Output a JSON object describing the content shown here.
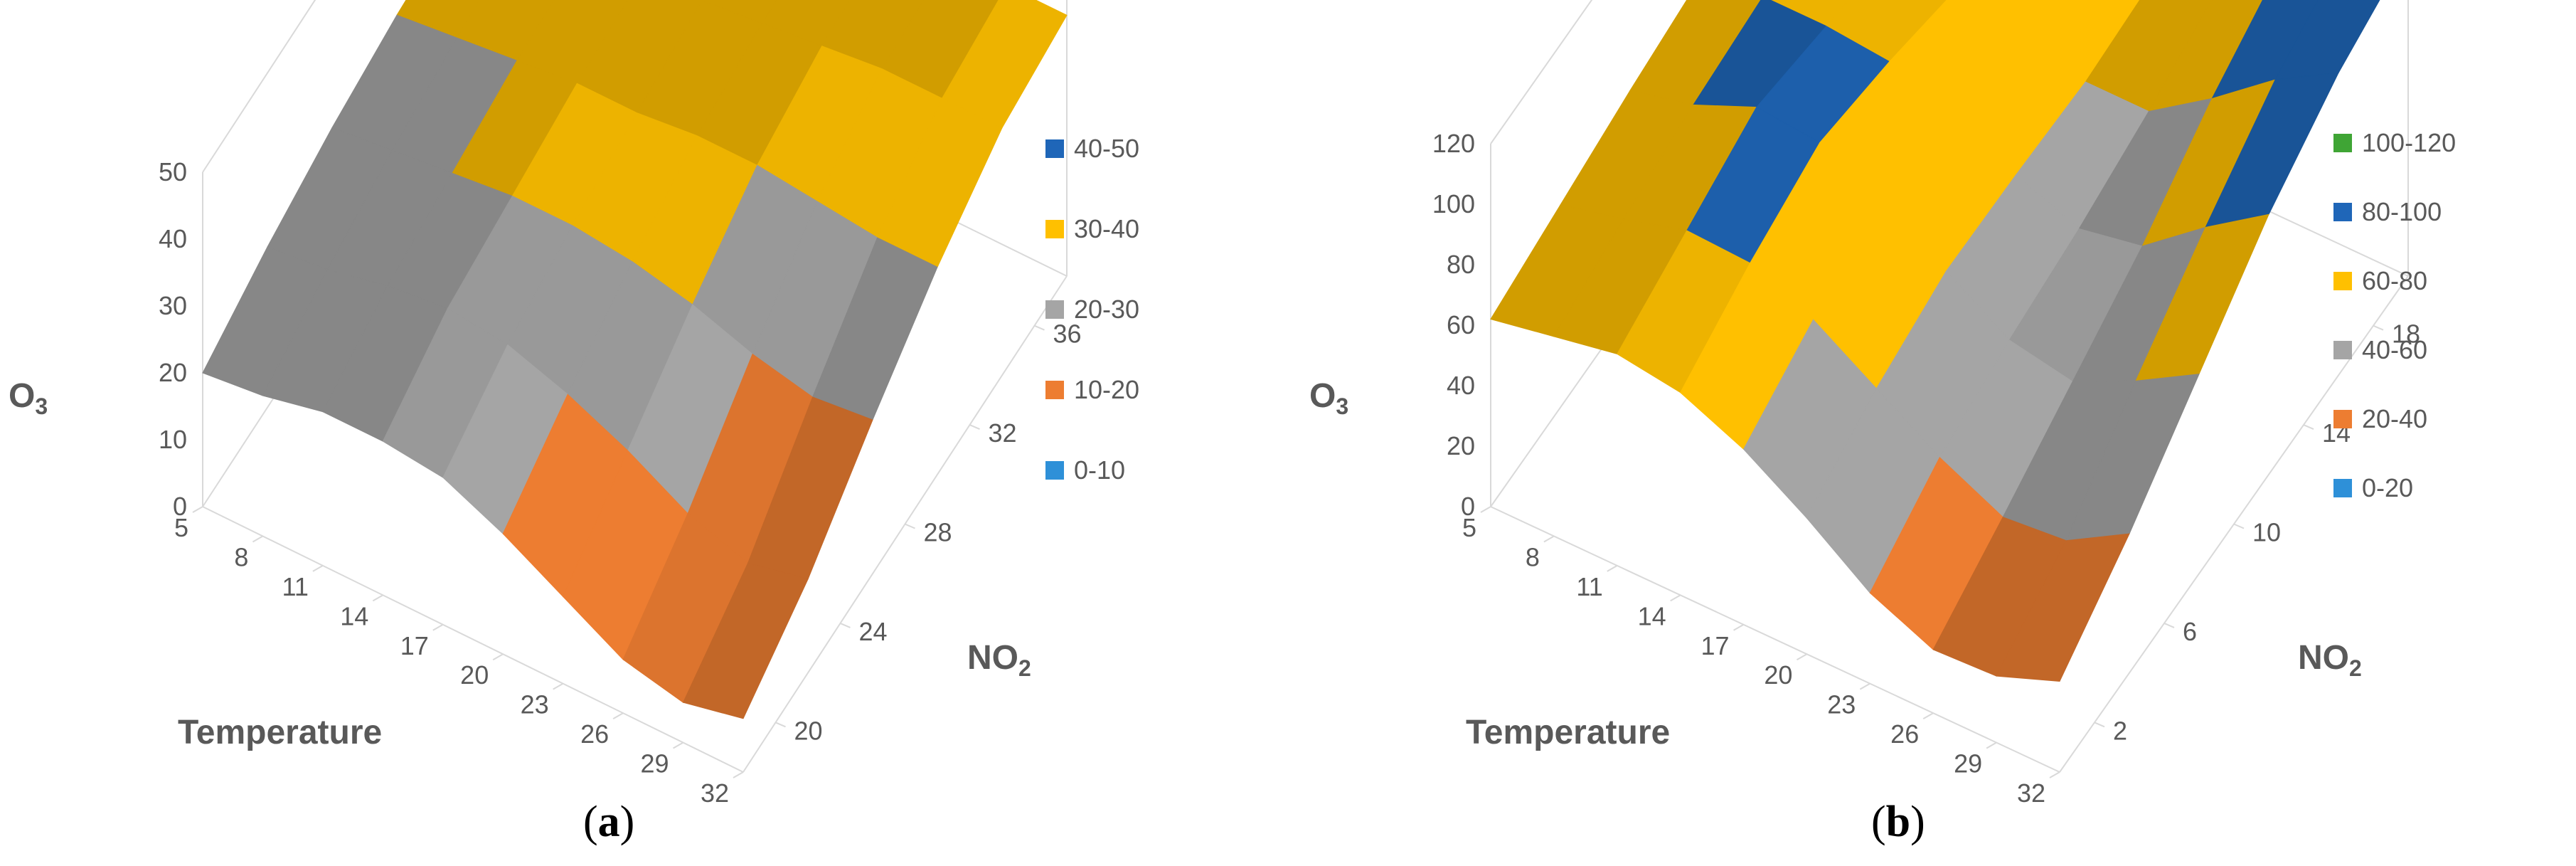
{
  "chart_data": [
    {
      "type": "surface",
      "panel_label": "a",
      "zlabel": "O",
      "zlabel_sub": "3",
      "xlabel": "Temperature",
      "ylabel": "NO",
      "ylabel_sub": "2",
      "zlim": [
        0,
        50
      ],
      "z_ticks": [
        "0",
        "10",
        "20",
        "30",
        "40",
        "50"
      ],
      "x_ticks": [
        "5",
        "8",
        "11",
        "14",
        "17",
        "20",
        "23",
        "26",
        "29",
        "32"
      ],
      "y_ticks": [
        "20",
        "24",
        "28",
        "32",
        "36"
      ],
      "bands": [
        {
          "label": "40-50",
          "color": "#1F66B8"
        },
        {
          "label": "30-40",
          "color": "#FFC000"
        },
        {
          "label": "20-30",
          "color": "#A5A5A5"
        },
        {
          "label": "10-20",
          "color": "#ED7D31"
        },
        {
          "label": "0-10",
          "color": "#2E90D8"
        }
      ],
      "z_grid": [
        [
          20,
          24,
          27,
          29,
          30,
          30
        ],
        [
          21,
          25,
          28,
          30,
          31,
          31
        ],
        [
          23,
          27,
          29,
          31,
          32,
          32
        ],
        [
          23,
          28,
          30,
          32,
          33,
          33
        ],
        [
          22,
          27,
          30,
          32,
          34,
          34
        ],
        [
          18,
          24,
          29,
          33,
          35,
          35
        ],
        [
          13,
          20,
          27,
          33,
          36,
          37
        ],
        [
          8,
          15,
          24,
          32,
          37,
          38
        ],
        [
          6,
          12,
          22,
          31,
          37,
          39
        ],
        [
          8,
          14,
          23,
          31,
          37,
          39
        ]
      ]
    },
    {
      "type": "surface",
      "panel_label": "b",
      "zlabel": "O",
      "zlabel_sub": "3",
      "xlabel": "Temperature",
      "ylabel": "NO",
      "ylabel_sub": "2",
      "zlim": [
        0,
        120
      ],
      "z_ticks": [
        "0",
        "20",
        "40",
        "60",
        "80",
        "100",
        "120"
      ],
      "x_ticks": [
        "5",
        "8",
        "11",
        "14",
        "17",
        "20",
        "23",
        "26",
        "29",
        "32"
      ],
      "y_ticks": [
        "2",
        "6",
        "10",
        "14",
        "18"
      ],
      "bands": [
        {
          "label": "100-120",
          "color": "#3FA535"
        },
        {
          "label": "80-100",
          "color": "#1F66B8"
        },
        {
          "label": "60-80",
          "color": "#FFC000"
        },
        {
          "label": "40-60",
          "color": "#A5A5A5"
        },
        {
          "label": "20-40",
          "color": "#ED7D31"
        },
        {
          "label": "0-20",
          "color": "#2E90D8"
        }
      ],
      "z_grid": [
        [
          62,
          67,
          72,
          76,
          79,
          80
        ],
        [
          66,
          72,
          77,
          80,
          79,
          76
        ],
        [
          70,
          78,
          86,
          80,
          74,
          70
        ],
        [
          67,
          77,
          84,
          78,
          70,
          66
        ],
        [
          58,
          68,
          73,
          70,
          64,
          62
        ],
        [
          45,
          55,
          61,
          60,
          58,
          60
        ],
        [
          30,
          42,
          48,
          52,
          58,
          66
        ],
        [
          21,
          32,
          44,
          56,
          72,
          84
        ],
        [
          22,
          34,
          54,
          72,
          88,
          98
        ],
        [
          30,
          46,
          66,
          86,
          100,
          108
        ]
      ]
    }
  ]
}
